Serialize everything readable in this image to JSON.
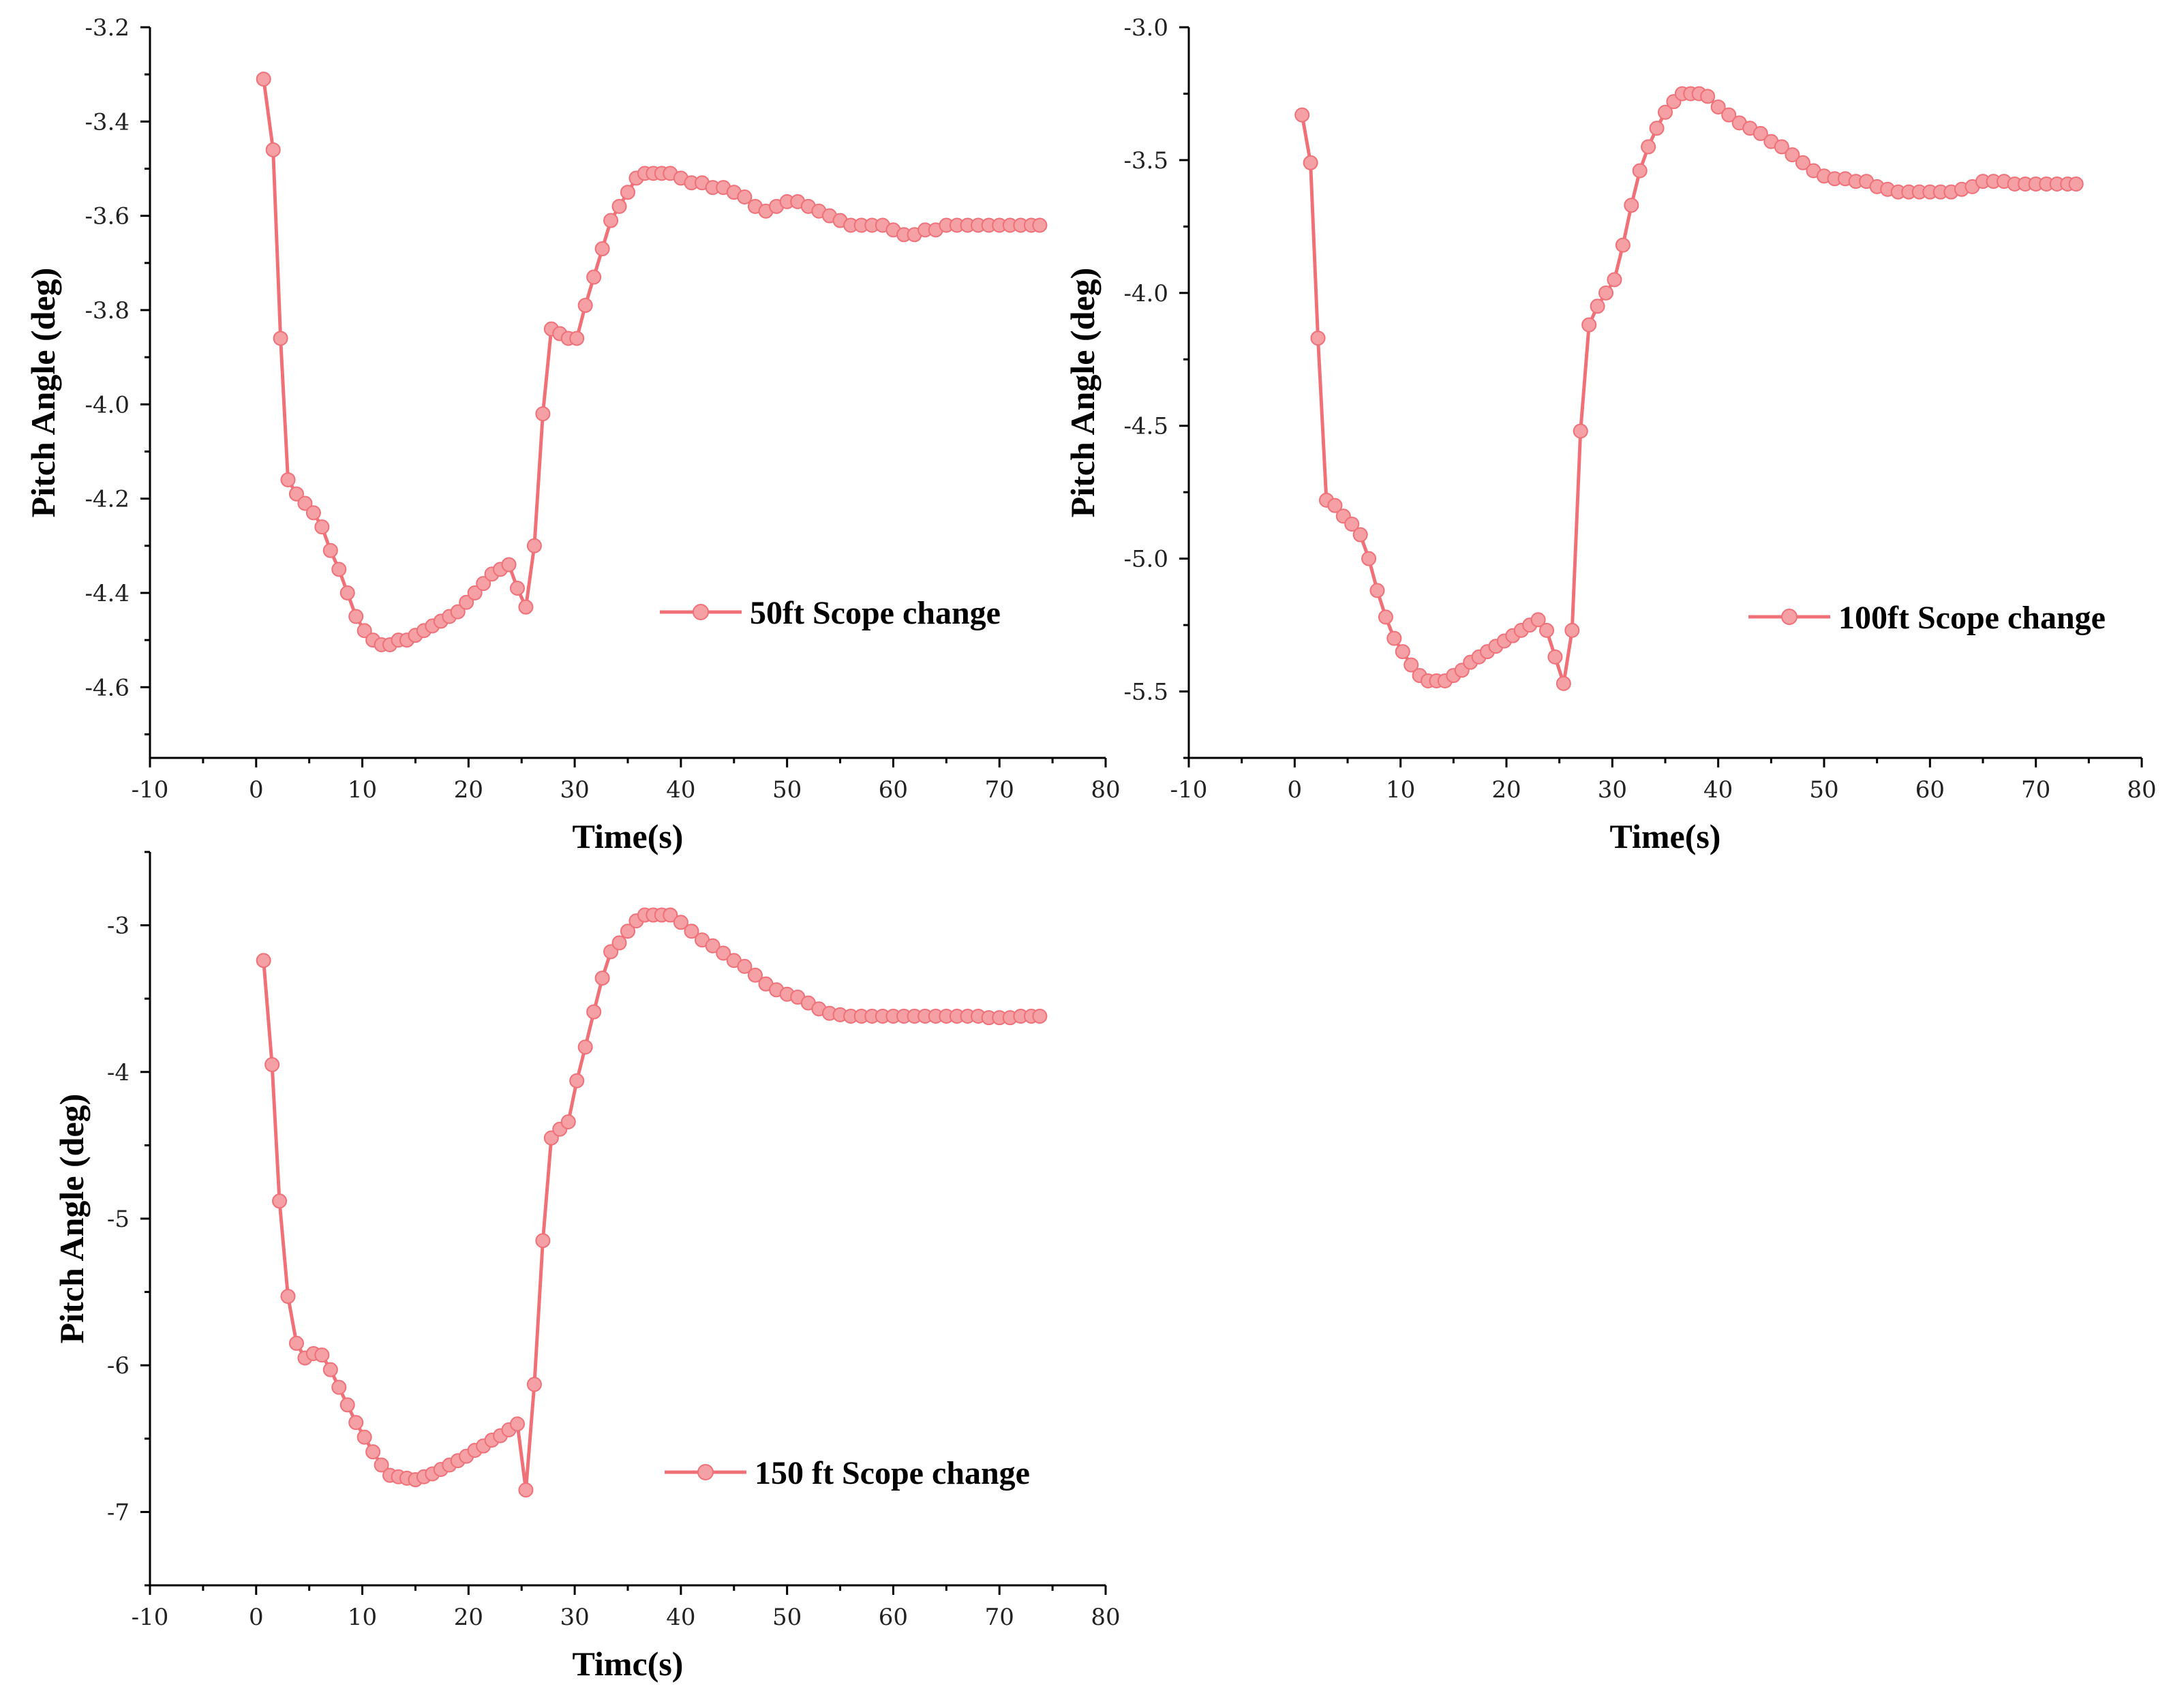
{
  "colors": {
    "series": "#f07078",
    "marker_fill": "#f4a0a4",
    "axis": "#000000"
  },
  "chart_data": [
    {
      "type": "line",
      "title": "",
      "xlabel": "Time(s)",
      "ylabel": "Pitch Angle (deg)",
      "xlim": [
        -10,
        80
      ],
      "ylim": [
        -4.75,
        -3.2
      ],
      "xticks": [
        -10,
        0,
        10,
        20,
        30,
        40,
        50,
        60,
        70,
        80
      ],
      "yticks": [
        -4.6,
        -4.4,
        -4.2,
        -4.0,
        -3.8,
        -3.6,
        -3.4,
        -3.2
      ],
      "ytick_labels": [
        "-4.6",
        "-4.4",
        "-4.2",
        "-4.0",
        "-3.8",
        "-3.6",
        "-3.4",
        "-3.2"
      ],
      "legend": "50ft Scope change",
      "legend_position": "lower-right",
      "x": [
        0.7,
        1.6,
        2.3,
        3.0,
        3.8,
        4.6,
        5.4,
        6.2,
        7.0,
        7.8,
        8.6,
        9.4,
        10.2,
        11.0,
        11.8,
        12.6,
        13.4,
        14.2,
        15.0,
        15.8,
        16.6,
        17.4,
        18.2,
        19.0,
        19.8,
        20.6,
        21.4,
        22.2,
        23.0,
        23.8,
        24.6,
        25.4,
        26.2,
        27.0,
        27.8,
        28.6,
        29.4,
        30.2,
        31.0,
        31.8,
        32.6,
        33.4,
        34.2,
        35.0,
        35.8,
        36.6,
        37.4,
        38.2,
        39.0,
        40.0,
        41.0,
        42.0,
        43.0,
        44.0,
        45.0,
        46.0,
        47.0,
        48.0,
        49.0,
        50.0,
        51.0,
        52.0,
        53.0,
        54.0,
        55.0,
        56.0,
        57.0,
        58.0,
        59.0,
        60.0,
        61.0,
        62.0,
        63.0,
        64.0,
        65.0,
        66.0,
        67.0,
        68.0,
        69.0,
        70.0,
        71.0,
        72.0,
        73.0,
        73.8
      ],
      "y": [
        -3.31,
        -3.46,
        -3.86,
        -4.16,
        -4.19,
        -4.21,
        -4.23,
        -4.26,
        -4.31,
        -4.35,
        -4.4,
        -4.45,
        -4.48,
        -4.5,
        -4.51,
        -4.51,
        -4.5,
        -4.5,
        -4.49,
        -4.48,
        -4.47,
        -4.46,
        -4.45,
        -4.44,
        -4.42,
        -4.4,
        -4.38,
        -4.36,
        -4.35,
        -4.34,
        -4.39,
        -4.43,
        -4.3,
        -4.02,
        -3.84,
        -3.85,
        -3.86,
        -3.86,
        -3.79,
        -3.73,
        -3.67,
        -3.61,
        -3.58,
        -3.55,
        -3.52,
        -3.51,
        -3.51,
        -3.51,
        -3.51,
        -3.52,
        -3.53,
        -3.53,
        -3.54,
        -3.54,
        -3.55,
        -3.56,
        -3.58,
        -3.59,
        -3.58,
        -3.57,
        -3.57,
        -3.58,
        -3.59,
        -3.6,
        -3.61,
        -3.62,
        -3.62,
        -3.62,
        -3.62,
        -3.63,
        -3.64,
        -3.64,
        -3.63,
        -3.63,
        -3.62,
        -3.62,
        -3.62,
        -3.62,
        -3.62,
        -3.62,
        -3.62,
        -3.62,
        -3.62,
        -3.62
      ]
    },
    {
      "type": "line",
      "title": "",
      "xlabel": "Time(s)",
      "ylabel": "Pitch Angle (deg)",
      "xlim": [
        -10,
        80
      ],
      "ylim": [
        -5.75,
        -3.0
      ],
      "xticks": [
        -10,
        0,
        10,
        20,
        30,
        40,
        50,
        60,
        70,
        80
      ],
      "yticks": [
        -5.5,
        -5.0,
        -4.5,
        -4.0,
        -3.5,
        -3.0
      ],
      "ytick_labels": [
        "-5.5",
        "-5.0",
        "-4.5",
        "-4.0",
        "-3.5",
        "-3.0"
      ],
      "legend": "100ft Scope change",
      "legend_position": "lower-right",
      "x": [
        0.7,
        1.5,
        2.2,
        3.0,
        3.8,
        4.6,
        5.4,
        6.2,
        7.0,
        7.8,
        8.6,
        9.4,
        10.2,
        11.0,
        11.8,
        12.6,
        13.4,
        14.2,
        15.0,
        15.8,
        16.6,
        17.4,
        18.2,
        19.0,
        19.8,
        20.6,
        21.4,
        22.2,
        23.0,
        23.8,
        24.6,
        25.4,
        26.2,
        27.0,
        27.8,
        28.6,
        29.4,
        30.2,
        31.0,
        31.8,
        32.6,
        33.4,
        34.2,
        35.0,
        35.8,
        36.6,
        37.4,
        38.2,
        39.0,
        40.0,
        41.0,
        42.0,
        43.0,
        44.0,
        45.0,
        46.0,
        47.0,
        48.0,
        49.0,
        50.0,
        51.0,
        52.0,
        53.0,
        54.0,
        55.0,
        56.0,
        57.0,
        58.0,
        59.0,
        60.0,
        61.0,
        62.0,
        63.0,
        64.0,
        65.0,
        66.0,
        67.0,
        68.0,
        69.0,
        70.0,
        71.0,
        72.0,
        73.0,
        73.8
      ],
      "y": [
        -3.33,
        -3.51,
        -4.17,
        -4.78,
        -4.8,
        -4.84,
        -4.87,
        -4.91,
        -5.0,
        -5.12,
        -5.22,
        -5.3,
        -5.35,
        -5.4,
        -5.44,
        -5.46,
        -5.46,
        -5.46,
        -5.44,
        -5.42,
        -5.39,
        -5.37,
        -5.35,
        -5.33,
        -5.31,
        -5.29,
        -5.27,
        -5.25,
        -5.23,
        -5.27,
        -5.37,
        -5.47,
        -5.27,
        -4.52,
        -4.12,
        -4.05,
        -4.0,
        -3.95,
        -3.82,
        -3.67,
        -3.54,
        -3.45,
        -3.38,
        -3.32,
        -3.28,
        -3.25,
        -3.25,
        -3.25,
        -3.26,
        -3.3,
        -3.33,
        -3.36,
        -3.38,
        -3.4,
        -3.43,
        -3.45,
        -3.48,
        -3.51,
        -3.54,
        -3.56,
        -3.57,
        -3.57,
        -3.58,
        -3.58,
        -3.6,
        -3.61,
        -3.62,
        -3.62,
        -3.62,
        -3.62,
        -3.62,
        -3.62,
        -3.61,
        -3.6,
        -3.58,
        -3.58,
        -3.58,
        -3.59,
        -3.59,
        -3.59,
        -3.59,
        -3.59,
        -3.59,
        -3.59
      ]
    },
    {
      "type": "line",
      "title": "",
      "xlabel": "Timc(s)",
      "ylabel": "Pitch Angle (deg)",
      "xlim": [
        -10,
        80
      ],
      "ylim": [
        -7.5,
        -2.5
      ],
      "xticks": [
        -10,
        0,
        10,
        20,
        30,
        40,
        50,
        60,
        70,
        80
      ],
      "yticks": [
        -7,
        -6,
        -5,
        -4,
        -3
      ],
      "ytick_labels": [
        "-7",
        "-6",
        "-5",
        "-4",
        "-3"
      ],
      "legend": "150 ft Scope change",
      "legend_position": "lower-right",
      "x": [
        0.7,
        1.5,
        2.2,
        3.0,
        3.8,
        4.6,
        5.4,
        6.2,
        7.0,
        7.8,
        8.6,
        9.4,
        10.2,
        11.0,
        11.8,
        12.6,
        13.4,
        14.2,
        15.0,
        15.8,
        16.6,
        17.4,
        18.2,
        19.0,
        19.8,
        20.6,
        21.4,
        22.2,
        23.0,
        23.8,
        24.6,
        25.4,
        26.2,
        27.0,
        27.8,
        28.6,
        29.4,
        30.2,
        31.0,
        31.8,
        32.6,
        33.4,
        34.2,
        35.0,
        35.8,
        36.6,
        37.4,
        38.2,
        39.0,
        40.0,
        41.0,
        42.0,
        43.0,
        44.0,
        45.0,
        46.0,
        47.0,
        48.0,
        49.0,
        50.0,
        51.0,
        52.0,
        53.0,
        54.0,
        55.0,
        56.0,
        57.0,
        58.0,
        59.0,
        60.0,
        61.0,
        62.0,
        63.0,
        64.0,
        65.0,
        66.0,
        67.0,
        68.0,
        69.0,
        70.0,
        71.0,
        72.0,
        73.0,
        73.8
      ],
      "y": [
        -3.24,
        -3.95,
        -4.88,
        -5.53,
        -5.85,
        -5.95,
        -5.92,
        -5.93,
        -6.03,
        -6.15,
        -6.27,
        -6.39,
        -6.49,
        -6.59,
        -6.68,
        -6.75,
        -6.76,
        -6.77,
        -6.78,
        -6.76,
        -6.74,
        -6.71,
        -6.68,
        -6.65,
        -6.62,
        -6.58,
        -6.55,
        -6.51,
        -6.48,
        -6.44,
        -6.4,
        -6.85,
        -6.13,
        -5.15,
        -4.45,
        -4.39,
        -4.34,
        -4.06,
        -3.83,
        -3.59,
        -3.36,
        -3.18,
        -3.12,
        -3.04,
        -2.97,
        -2.93,
        -2.93,
        -2.93,
        -2.93,
        -2.98,
        -3.04,
        -3.1,
        -3.14,
        -3.19,
        -3.24,
        -3.28,
        -3.34,
        -3.4,
        -3.44,
        -3.47,
        -3.49,
        -3.53,
        -3.57,
        -3.6,
        -3.61,
        -3.62,
        -3.62,
        -3.62,
        -3.62,
        -3.62,
        -3.62,
        -3.62,
        -3.62,
        -3.62,
        -3.62,
        -3.62,
        -3.62,
        -3.62,
        -3.63,
        -3.63,
        -3.63,
        -3.62,
        -3.62,
        -3.62
      ]
    }
  ]
}
